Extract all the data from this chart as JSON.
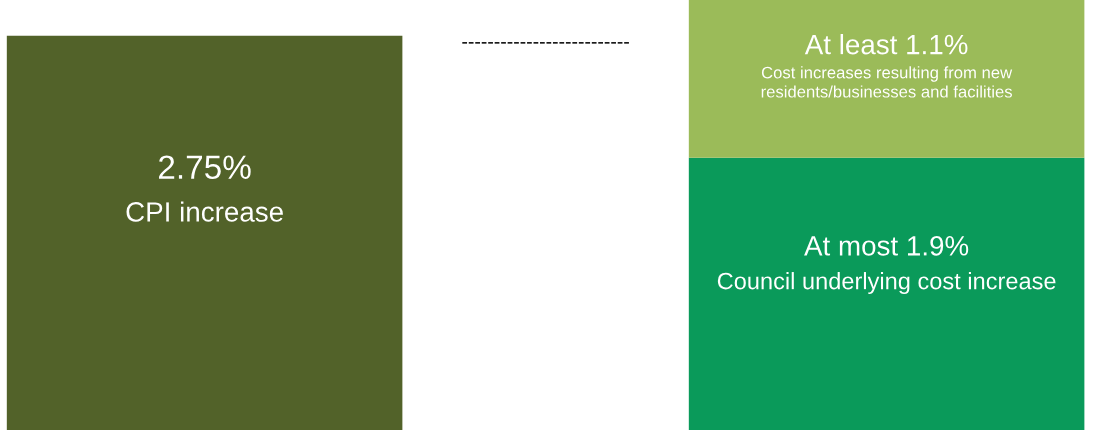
{
  "chart_data": {
    "type": "bar",
    "stacked": true,
    "categories": [
      null,
      null
    ],
    "series": [
      {
        "name": "CPI increase",
        "color": "#526229",
        "values": [
          2.75,
          null
        ],
        "value_labels": [
          "2.75%",
          null
        ]
      },
      {
        "name": "Council underlying cost increase",
        "color": "#0a9a5a",
        "values": [
          null,
          1.9
        ],
        "value_labels": [
          null,
          "At most 1.9%"
        ]
      },
      {
        "name": "Cost increases resulting from new residents/businesses and facilities",
        "color": "#9bbb59",
        "values": [
          null,
          1.1
        ],
        "value_labels": [
          null,
          "At least 1.1%"
        ]
      }
    ],
    "annotations": [
      "--------------------------"
    ],
    "legend": false
  }
}
